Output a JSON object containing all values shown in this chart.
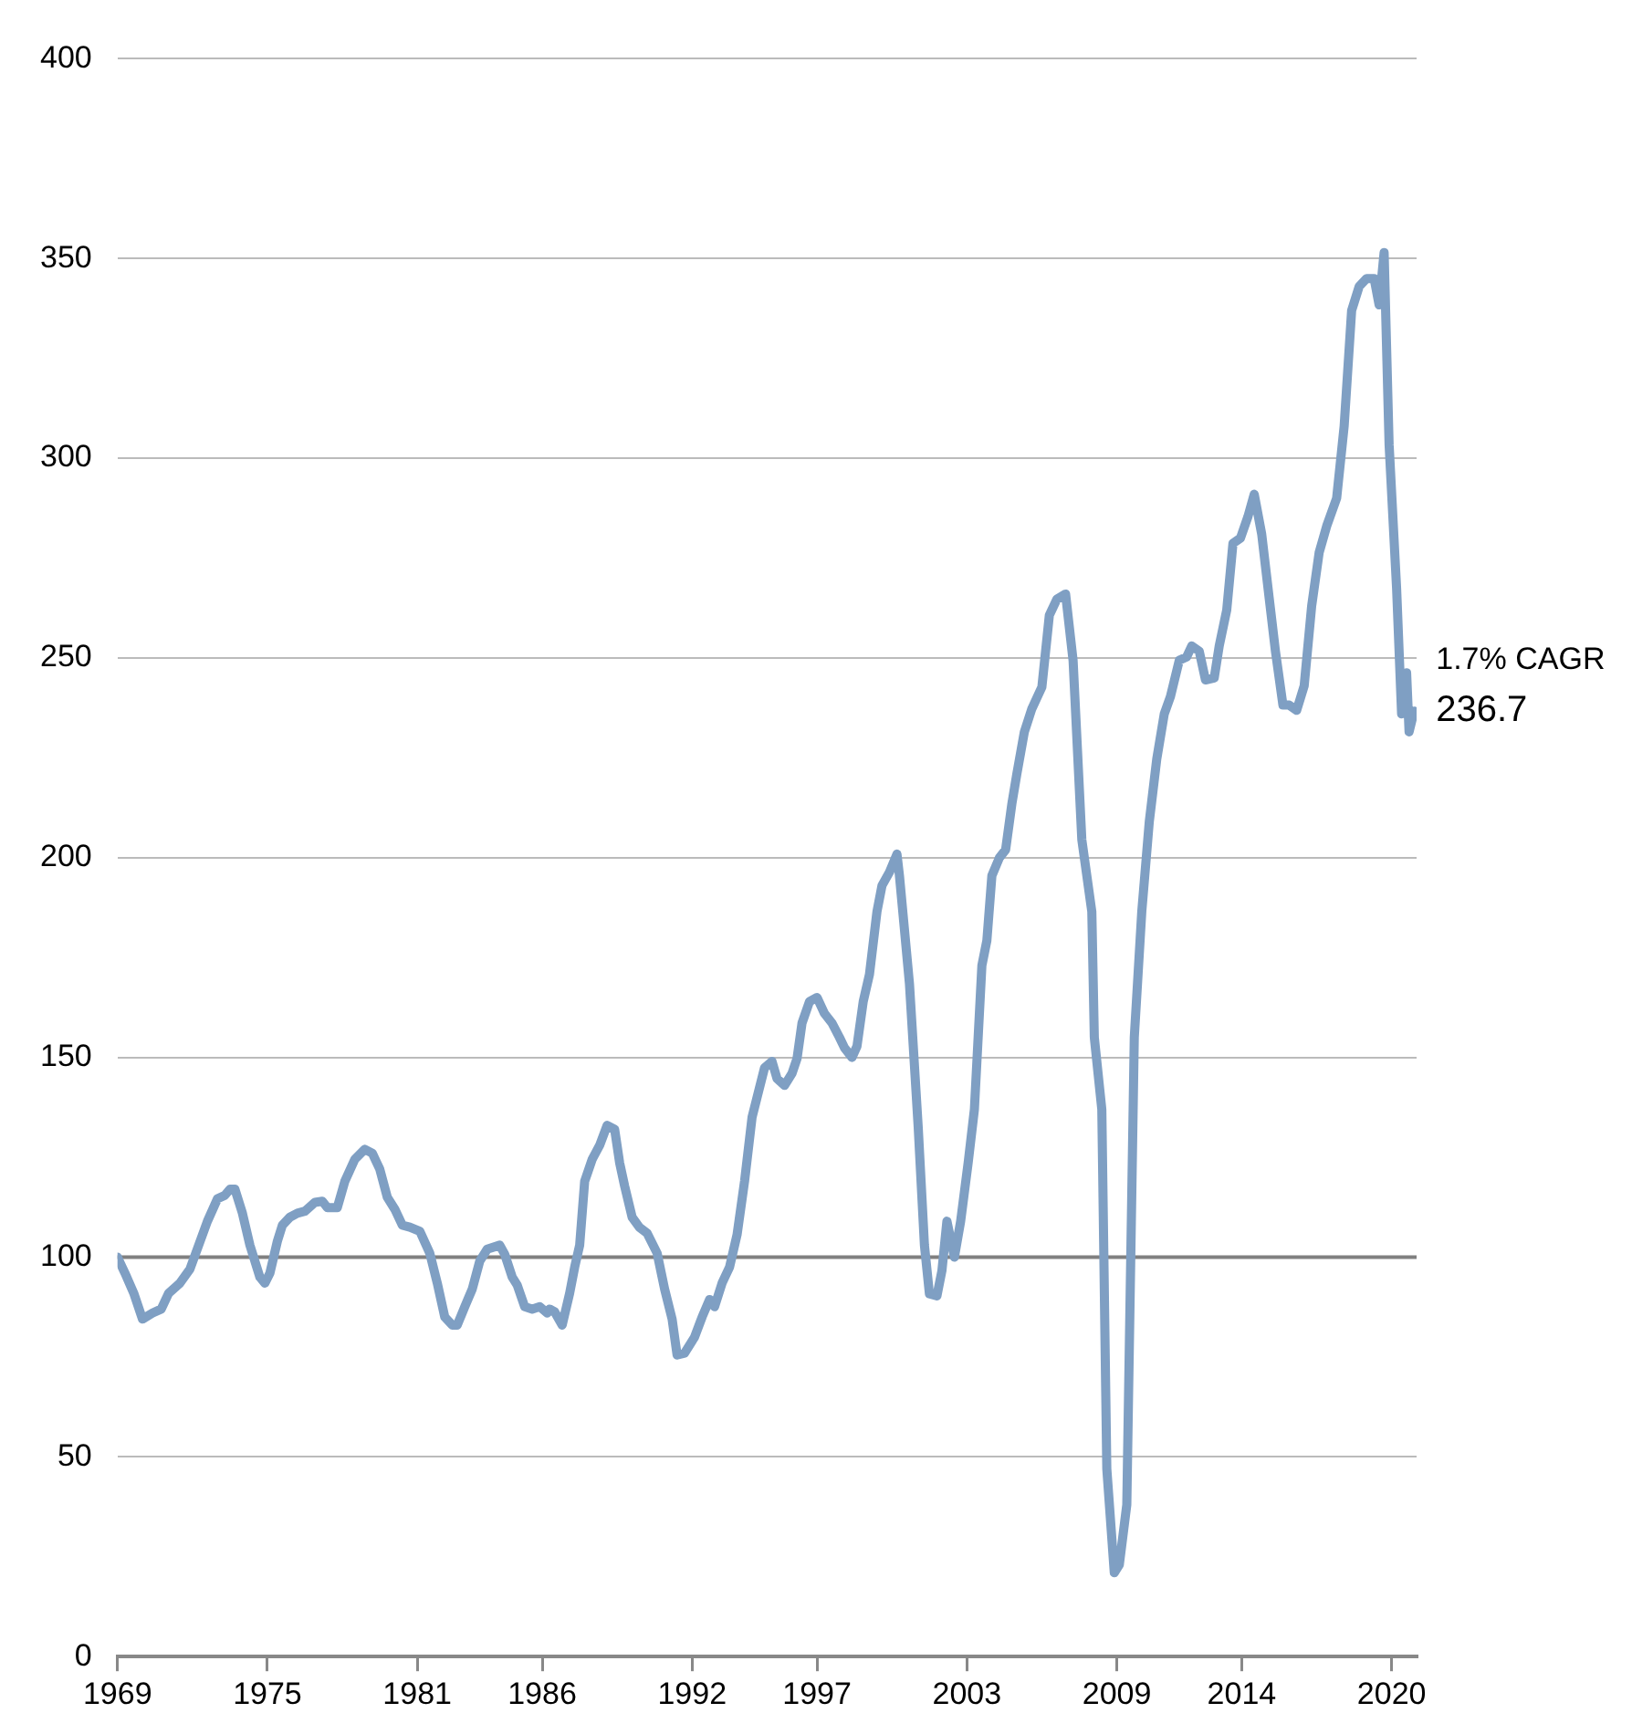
{
  "chart_data": {
    "type": "line",
    "xlim": [
      1969,
      2021
    ],
    "xticks": [
      1969,
      1975,
      1981,
      1986,
      1992,
      1997,
      2003,
      2009,
      2014,
      2020
    ],
    "ylim": [
      0,
      400
    ],
    "yticks": [
      0,
      50,
      100,
      150,
      200,
      250,
      300,
      350,
      400
    ],
    "grid": "y",
    "legend": false,
    "marker": "none",
    "line_style": "solid",
    "series": [
      {
        "color": "#7f9fc3",
        "x": [
          1969.0,
          1969.3,
          1969.65,
          1970.0,
          1970.4,
          1970.75,
          1971.05,
          1971.5,
          1971.9,
          1972.25,
          1972.6,
          1973.0,
          1973.3,
          1973.5,
          1973.7,
          1974.0,
          1974.3,
          1974.7,
          1974.9,
          1975.1,
          1975.4,
          1975.6,
          1975.9,
          1976.2,
          1976.5,
          1976.9,
          1977.2,
          1977.4,
          1977.8,
          1978.1,
          1978.5,
          1978.9,
          1979.2,
          1979.5,
          1979.8,
          1980.1,
          1980.4,
          1980.7,
          1981.1,
          1981.5,
          1981.8,
          1982.1,
          1982.4,
          1982.6,
          1982.9,
          1983.2,
          1983.5,
          1983.8,
          1984.3,
          1984.5,
          1984.8,
          1985.0,
          1985.3,
          1985.6,
          1985.9,
          1986.2,
          1986.3,
          1986.5,
          1986.8,
          1987.1,
          1987.3,
          1987.5,
          1987.7,
          1988.0,
          1988.3,
          1988.6,
          1988.9,
          1989.1,
          1989.3,
          1989.6,
          1989.9,
          1990.2,
          1990.6,
          1990.9,
          1991.2,
          1991.4,
          1991.7,
          1992.1,
          1992.4,
          1992.7,
          1992.9,
          1993.2,
          1993.5,
          1993.8,
          1994.1,
          1994.4,
          1994.6,
          1994.9,
          1995.2,
          1995.4,
          1995.7,
          1996.0,
          1996.2,
          1996.4,
          1996.7,
          1997.0,
          1997.3,
          1997.6,
          1997.9,
          1998.1,
          1998.4,
          1998.6,
          1998.85,
          1999.1,
          1999.4,
          1999.6,
          1999.9,
          2000.2,
          2000.3,
          2000.7,
          2001.05,
          2001.3,
          2001.5,
          2001.8,
          2002.0,
          2002.2,
          2002.5,
          2002.75,
          2003.05,
          2003.3,
          2003.6,
          2003.8,
          2004.0,
          2004.3,
          2004.55,
          2004.8,
          2005.0,
          2005.3,
          2005.6,
          2006.0,
          2006.3,
          2006.6,
          2006.95,
          2007.25,
          2007.6,
          2008.0,
          2008.1,
          2008.4,
          2008.6,
          2008.9,
          2009.1,
          2009.4,
          2009.7,
          2010.0,
          2010.3,
          2010.6,
          2010.9,
          2011.15,
          2011.5,
          2011.8,
          2012.0,
          2012.3,
          2012.55,
          2012.9,
          2013.1,
          2013.4,
          2013.65,
          2013.95,
          2014.25,
          2014.5,
          2014.8,
          2015.1,
          2015.35,
          2015.65,
          2015.9,
          2016.2,
          2016.5,
          2016.8,
          2017.1,
          2017.4,
          2017.8,
          2018.1,
          2018.4,
          2018.7,
          2019.0,
          2019.3,
          2019.5,
          2019.7,
          2019.9,
          2020.2,
          2020.4,
          2020.6,
          2020.7,
          2020.9
        ],
        "values": [
          100,
          96,
          91,
          84.5,
          86,
          87,
          91,
          93.5,
          97,
          103,
          109,
          114.6,
          115.5,
          117,
          117,
          111,
          103,
          95,
          93.5,
          96,
          104,
          108,
          110,
          111,
          111.5,
          113.7,
          114,
          112.4,
          112.4,
          119,
          124.5,
          127,
          126,
          122,
          115,
          112,
          108,
          107.5,
          106.5,
          101,
          93.5,
          85,
          83,
          83,
          87.6,
          92,
          99,
          102,
          103,
          100.7,
          95,
          93,
          87.6,
          87,
          87.6,
          86,
          87,
          86.3,
          83,
          91,
          97.5,
          103,
          119,
          124.5,
          128,
          133,
          132,
          123.6,
          117.8,
          110,
          107.4,
          106,
          101,
          92,
          84.5,
          75.5,
          76,
          80,
          85,
          89.4,
          87.6,
          93.5,
          97.5,
          105.6,
          119,
          135,
          140,
          147.4,
          149,
          144.7,
          143,
          146,
          149.7,
          158.6,
          164,
          165,
          161,
          158.6,
          155,
          152.4,
          150,
          152.8,
          164,
          170.8,
          186.5,
          193,
          196.4,
          200.9,
          195.5,
          168.5,
          132.6,
          103,
          90.8,
          90.3,
          96.6,
          109,
          100,
          109,
          123.6,
          137,
          173,
          179.3,
          195.5,
          200,
          202,
          213.5,
          221,
          231.5,
          237.3,
          242.7,
          260.7,
          264.7,
          266,
          249.4,
          204.5,
          186.5,
          155,
          137,
          47,
          21,
          23,
          38,
          155,
          186.5,
          209,
          224.7,
          236,
          240.4,
          249.4,
          250.3,
          253,
          251.7,
          244.5,
          245,
          253,
          262,
          278.7,
          280,
          285.4,
          291,
          281,
          265,
          251.7,
          238.2,
          238.2,
          236.9,
          243,
          263,
          276.4,
          283,
          290,
          308,
          337,
          343,
          345,
          345,
          338.4,
          351.5,
          303.4,
          267.4,
          236,
          246.3,
          231.5,
          236.7
        ]
      }
    ],
    "ref_lines": [
      {
        "axis": "y",
        "value": 100,
        "color": "#808080"
      }
    ],
    "annotations": [
      "1.7% CAGR",
      {
        "text": "236.7",
        "x": 2020.9,
        "y": 236.7
      }
    ]
  }
}
